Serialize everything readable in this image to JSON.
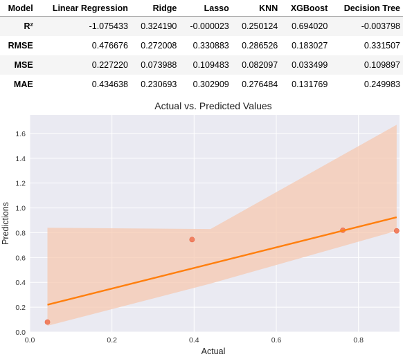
{
  "table": {
    "columns": [
      "Model",
      "Linear Regression",
      "Ridge",
      "Lasso",
      "KNN",
      "XGBoost",
      "Decision Tree"
    ],
    "rows": [
      {
        "metric": "R²",
        "values": [
          "-1.075433",
          "0.324190",
          "-0.000023",
          "0.250124",
          "0.694020",
          "-0.003798"
        ]
      },
      {
        "metric": "RMSE",
        "values": [
          "0.476676",
          "0.272008",
          "0.330883",
          "0.286526",
          "0.183027",
          "0.331507"
        ]
      },
      {
        "metric": "MSE",
        "values": [
          "0.227220",
          "0.073988",
          "0.109483",
          "0.082097",
          "0.033499",
          "0.109897"
        ]
      },
      {
        "metric": "MAE",
        "values": [
          "0.434638",
          "0.230693",
          "0.302909",
          "0.276484",
          "0.131769",
          "0.249983"
        ]
      }
    ]
  },
  "chart_data": {
    "type": "scatter",
    "title": "Actual vs. Predicted Values",
    "xlabel": "Actual",
    "ylabel": "Predictions",
    "xlim": [
      0.0,
      0.9
    ],
    "ylim": [
      0.0,
      1.75
    ],
    "xticks": [
      0.0,
      0.2,
      0.4,
      0.6,
      0.8
    ],
    "yticks": [
      0.0,
      0.2,
      0.4,
      0.6,
      0.8,
      1.0,
      1.2,
      1.4,
      1.6
    ],
    "tick_labels_x": [
      "0.0",
      "0.2",
      "0.4",
      "0.6",
      "0.8"
    ],
    "tick_labels_y": [
      "0.0",
      "0.2",
      "0.4",
      "0.6",
      "0.8",
      "1.0",
      "1.2",
      "1.4",
      "1.6"
    ],
    "grid": true,
    "points": [
      {
        "x": 0.043,
        "y": 0.08
      },
      {
        "x": 0.395,
        "y": 0.745
      },
      {
        "x": 0.762,
        "y": 0.82
      },
      {
        "x": 0.893,
        "y": 0.815
      }
    ],
    "regression_line": {
      "x": [
        0.043,
        0.893
      ],
      "y": [
        0.22,
        0.925
      ]
    },
    "confidence_band": {
      "x": [
        0.043,
        0.44,
        0.893
      ],
      "upper": [
        0.84,
        0.83,
        1.67
      ],
      "lower": [
        0.05,
        0.39,
        0.815
      ]
    },
    "colors": {
      "background": "#eaeaf2",
      "grid": "#ffffff",
      "points": "#f08060",
      "line": "#ff7f0e",
      "band": "#f6c8b0"
    }
  }
}
